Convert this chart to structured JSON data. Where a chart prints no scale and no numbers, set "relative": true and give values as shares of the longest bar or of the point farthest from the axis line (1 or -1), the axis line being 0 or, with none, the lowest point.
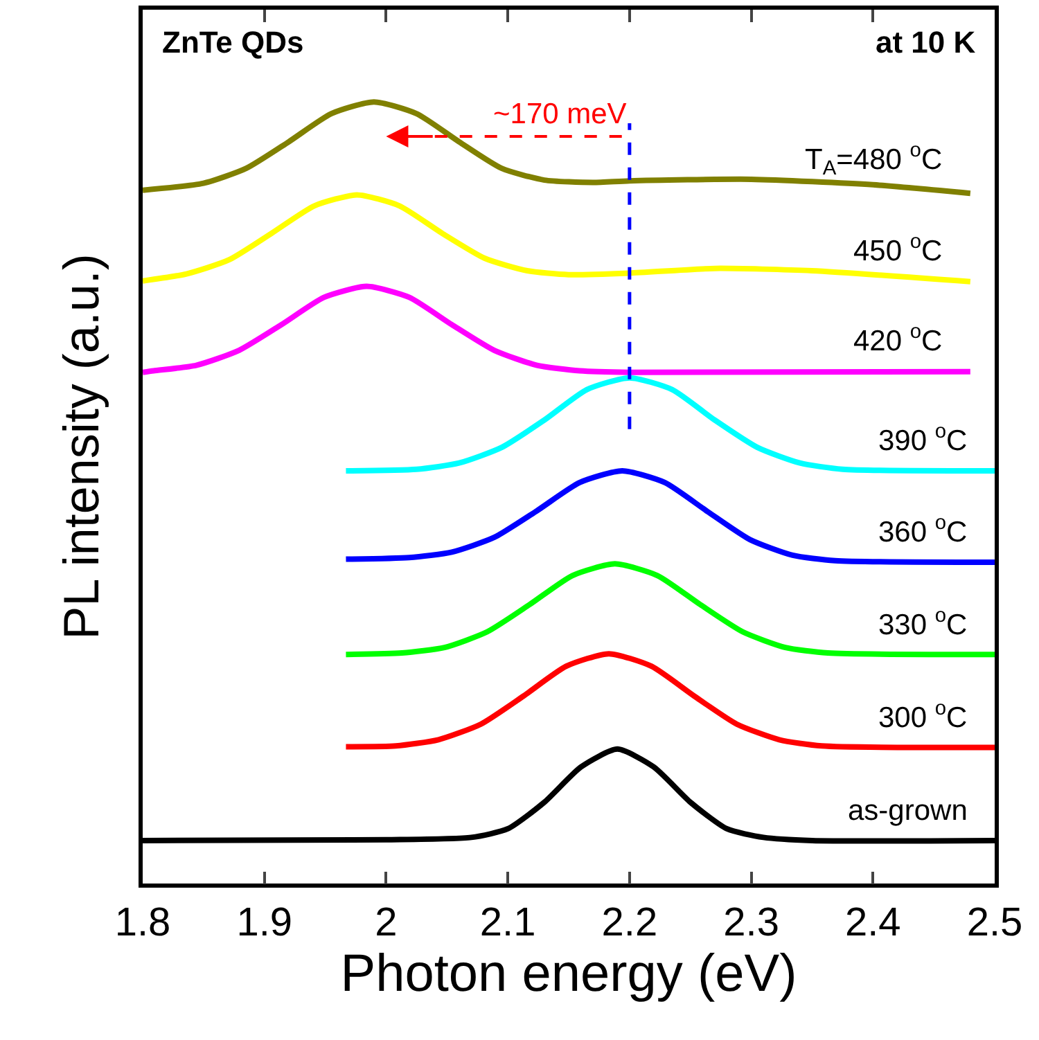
{
  "chart_data": {
    "type": "line",
    "relative": true,
    "xlabel": "Photon energy (eV)",
    "ylabel": "PL intensity (a.u.)",
    "xlim": [
      1.8,
      2.5
    ],
    "xticks": [
      1.8,
      1.9,
      2.0,
      2.1,
      2.2,
      2.3,
      2.4,
      2.5
    ],
    "grid": false,
    "legend": false,
    "marker": "none",
    "line_style": "solid",
    "annotations": [
      "ZnTe QDs",
      "at 10 K",
      "~170 meV"
    ],
    "ref_lines": [
      {
        "axis": "x",
        "value": 2.2,
        "color": "#0000ff",
        "line_style": "dashed"
      }
    ],
    "series": [
      {
        "name": "as-grown",
        "color": "#000000",
        "x": [
          1.8,
          2.0,
          2.07,
          2.1,
          2.13,
          2.16,
          2.19,
          2.22,
          2.25,
          2.28,
          2.31,
          2.35,
          2.5
        ],
        "values": [
          0.055,
          0.056,
          0.059,
          0.07,
          0.104,
          0.149,
          0.172,
          0.149,
          0.104,
          0.07,
          0.059,
          0.055,
          0.055
        ]
      },
      {
        "name": "300 $^{o}$C",
        "color": "#ff0000",
        "x": [
          1.967,
          2.008,
          2.043,
          2.078,
          2.113,
          2.148,
          2.183,
          2.218,
          2.253,
          2.288,
          2.323,
          2.358,
          2.5
        ],
        "values": [
          0.175,
          0.176,
          0.184,
          0.204,
          0.24,
          0.278,
          0.294,
          0.278,
          0.24,
          0.204,
          0.184,
          0.176,
          0.174
        ]
      },
      {
        "name": "330 $^{o}$C",
        "color": "#00ff00",
        "x": [
          1.967,
          2.013,
          2.048,
          2.083,
          2.118,
          2.153,
          2.188,
          2.223,
          2.258,
          2.293,
          2.328,
          2.363,
          2.5
        ],
        "values": [
          0.293,
          0.295,
          0.302,
          0.322,
          0.357,
          0.394,
          0.409,
          0.394,
          0.357,
          0.322,
          0.302,
          0.295,
          0.293
        ]
      },
      {
        "name": "360 $^{o}$C",
        "color": "#0000ff",
        "x": [
          1.967,
          2.019,
          2.054,
          2.089,
          2.124,
          2.159,
          2.194,
          2.229,
          2.264,
          2.299,
          2.334,
          2.369,
          2.5
        ],
        "values": [
          0.415,
          0.417,
          0.424,
          0.443,
          0.477,
          0.513,
          0.528,
          0.513,
          0.476,
          0.44,
          0.42,
          0.413,
          0.411
        ]
      },
      {
        "name": "390 $^{o}$C",
        "color": "#00ffff",
        "x": [
          1.967,
          2.025,
          2.06,
          2.095,
          2.13,
          2.165,
          2.2,
          2.235,
          2.27,
          2.305,
          2.34,
          2.375,
          2.5
        ],
        "values": [
          0.528,
          0.53,
          0.538,
          0.558,
          0.593,
          0.632,
          0.647,
          0.632,
          0.593,
          0.558,
          0.538,
          0.53,
          0.528
        ]
      },
      {
        "name": "420 $^{o}$C",
        "color": "#ff00ff",
        "x": [
          1.8,
          1.809,
          1.844,
          1.879,
          1.914,
          1.949,
          1.984,
          2.019,
          2.054,
          2.089,
          2.124,
          2.159,
          2.2,
          2.48
        ],
        "values": [
          0.654,
          0.656,
          0.663,
          0.682,
          0.715,
          0.75,
          0.764,
          0.75,
          0.715,
          0.682,
          0.663,
          0.656,
          0.654,
          0.655
        ]
      },
      {
        "name": "450 $^{o}$C",
        "color": "#ffff00",
        "x": [
          1.8,
          1.836,
          1.871,
          1.906,
          1.941,
          1.976,
          2.011,
          2.046,
          2.081,
          2.116,
          2.15,
          2.2,
          2.27,
          2.35,
          2.48
        ],
        "values": [
          0.771,
          0.78,
          0.798,
          0.832,
          0.867,
          0.881,
          0.867,
          0.832,
          0.8,
          0.784,
          0.779,
          0.781,
          0.787,
          0.784,
          0.77
        ]
      },
      {
        "name": "T$_{A}$=480 $^{o}$C",
        "color": "#808000",
        "x": [
          1.8,
          1.85,
          1.885,
          1.92,
          1.955,
          1.99,
          2.025,
          2.06,
          2.095,
          2.13,
          2.17,
          2.2,
          2.3,
          2.4,
          2.48
        ],
        "values": [
          0.887,
          0.896,
          0.915,
          0.949,
          0.985,
          1.0,
          0.985,
          0.949,
          0.915,
          0.9,
          0.897,
          0.899,
          0.901,
          0.894,
          0.883
        ]
      }
    ]
  }
}
